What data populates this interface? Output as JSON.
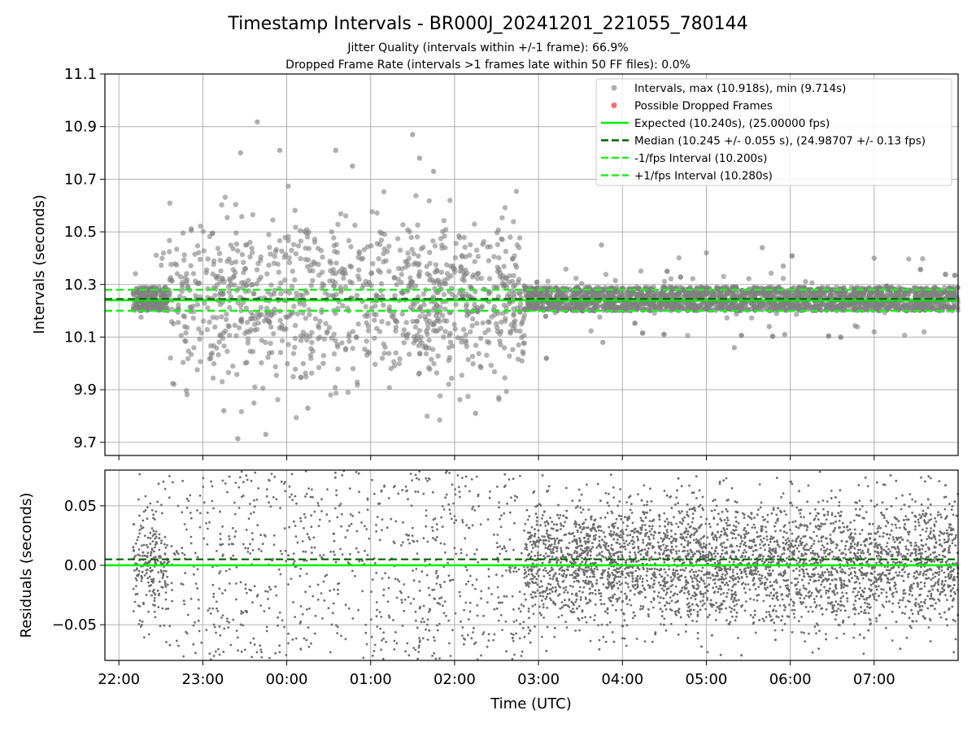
{
  "title": "Timestamp Intervals - BR000J_20241201_221055_780144",
  "subtitle_line1": "Jitter Quality (intervals within +/-1 frame): 66.9%",
  "subtitle_line2": "Dropped Frame Rate (intervals >1 frames late within 50 FF files): 0.0%",
  "colors": {
    "scatter": "#808080",
    "dropped": "#ff4d4d",
    "expected": "#00ee00",
    "median": "#006400",
    "interval": "#22ee22",
    "grid": "#b0b0b0"
  },
  "chart_data": [
    {
      "type": "scatter",
      "panel": "intervals",
      "ylabel": "Intervals (seconds)",
      "ylim": [
        9.65,
        11.1
      ],
      "xlim": [
        "21:50",
        "08:00"
      ],
      "x_note": "time of day UTC, axis spans 2024-12-01 21:50 to 2024-12-02 08:00",
      "yticks": [
        "9.7",
        "9.9",
        "10.1",
        "10.3",
        "10.5",
        "10.7",
        "10.9",
        "11.1"
      ],
      "grid": true,
      "legend_position": "top-right",
      "legend": [
        {
          "label": "Intervals, max (10.918s), min (9.714s)",
          "kind": "marker",
          "color": "#a0a0a0"
        },
        {
          "label": "Possible Dropped Frames",
          "kind": "marker",
          "color": "#ff4d4d"
        },
        {
          "label": "Expected (10.240s), (25.00000 fps)",
          "kind": "solid",
          "color": "#00ee00"
        },
        {
          "label": "Median (10.245 +/- 0.055 s), (24.98707 +/- 0.13 fps)",
          "kind": "dashed",
          "color": "#006400"
        },
        {
          "label": "-1/fps Interval (10.200s)",
          "kind": "dashed",
          "color": "#22ee22"
        },
        {
          "label": "+1/fps Interval (10.280s)",
          "kind": "dashed",
          "color": "#22ee22"
        }
      ],
      "reference_lines": {
        "expected": 10.24,
        "median": 10.245,
        "minus_interval": 10.2,
        "plus_interval": 10.28
      },
      "max_interval": 10.918,
      "min_interval": 9.714,
      "series": [
        {
          "name": "Intervals",
          "segments": [
            {
              "start": "22:10",
              "end": "22:35",
              "spread": 0.03
            },
            {
              "start": "22:35",
              "end": "02:50",
              "spread": 0.2
            },
            {
              "start": "02:50",
              "end": "08:00",
              "spread": 0.03
            }
          ],
          "highlighted_points": [
            {
              "x": "23:15",
              "y": 9.82
            },
            {
              "x": "23:25",
              "y": 9.714
            },
            {
              "x": "23:27",
              "y": 10.8
            },
            {
              "x": "23:39",
              "y": 10.918
            },
            {
              "x": "23:45",
              "y": 9.73
            },
            {
              "x": "23:55",
              "y": 10.81
            },
            {
              "x": "00:15",
              "y": 9.83
            },
            {
              "x": "00:35",
              "y": 10.81
            },
            {
              "x": "00:47",
              "y": 10.75
            },
            {
              "x": "01:30",
              "y": 10.87
            },
            {
              "x": "01:35",
              "y": 10.78
            },
            {
              "x": "01:45",
              "y": 10.73
            },
            {
              "x": "02:15",
              "y": 9.81
            },
            {
              "x": "03:45",
              "y": 10.45
            },
            {
              "x": "03:46",
              "y": 10.08
            },
            {
              "x": "05:00",
              "y": 10.42
            },
            {
              "x": "05:20",
              "y": 10.06
            },
            {
              "x": "05:40",
              "y": 10.44
            },
            {
              "x": "05:45",
              "y": 10.14
            },
            {
              "x": "05:55",
              "y": 10.37
            },
            {
              "x": "05:56",
              "y": 10.11
            },
            {
              "x": "07:00",
              "y": 10.4
            },
            {
              "x": "07:00",
              "y": 10.12
            }
          ]
        }
      ]
    },
    {
      "type": "scatter",
      "panel": "residuals",
      "ylabel": "Residuals (seconds)",
      "xlabel": "Time (UTC)",
      "ylim": [
        -0.08,
        0.08
      ],
      "xlim": [
        "21:50",
        "08:00"
      ],
      "yticks": [
        "−0.05",
        "0.00",
        "0.05"
      ],
      "xticks": [
        "22:00",
        "23:00",
        "00:00",
        "01:00",
        "02:00",
        "03:00",
        "04:00",
        "05:00",
        "06:00",
        "07:00"
      ],
      "grid": true,
      "reference_lines": {
        "zero": 0.0,
        "median_offset": 0.005
      },
      "series": [
        {
          "name": "Residuals",
          "segments": [
            {
              "start": "22:10",
              "end": "22:35",
              "spread": 0.03
            },
            {
              "start": "22:35",
              "end": "02:50",
              "spread": 0.2
            },
            {
              "start": "02:50",
              "end": "08:00",
              "spread": 0.03
            }
          ]
        }
      ]
    }
  ]
}
